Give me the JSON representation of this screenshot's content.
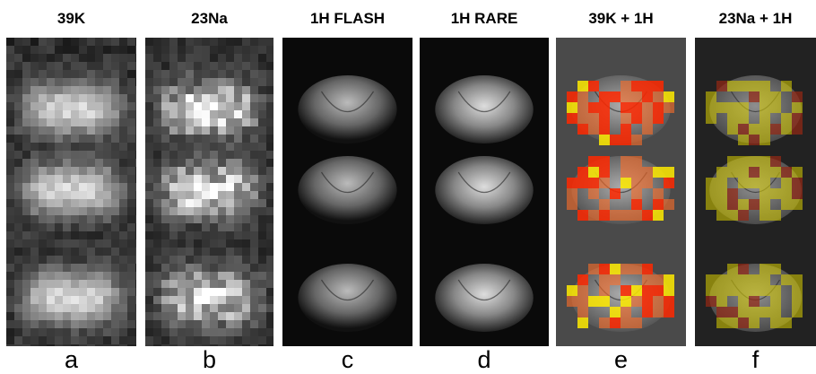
{
  "columns": [
    {
      "header": "39K",
      "label": "a"
    },
    {
      "header": "23Na",
      "label": "b"
    },
    {
      "header": "1H FLASH",
      "label": "c"
    },
    {
      "header": "1H RARE",
      "label": "d"
    },
    {
      "header": "39K + 1H",
      "label": "e"
    },
    {
      "header": "23Na + 1H",
      "label": "f"
    }
  ]
}
